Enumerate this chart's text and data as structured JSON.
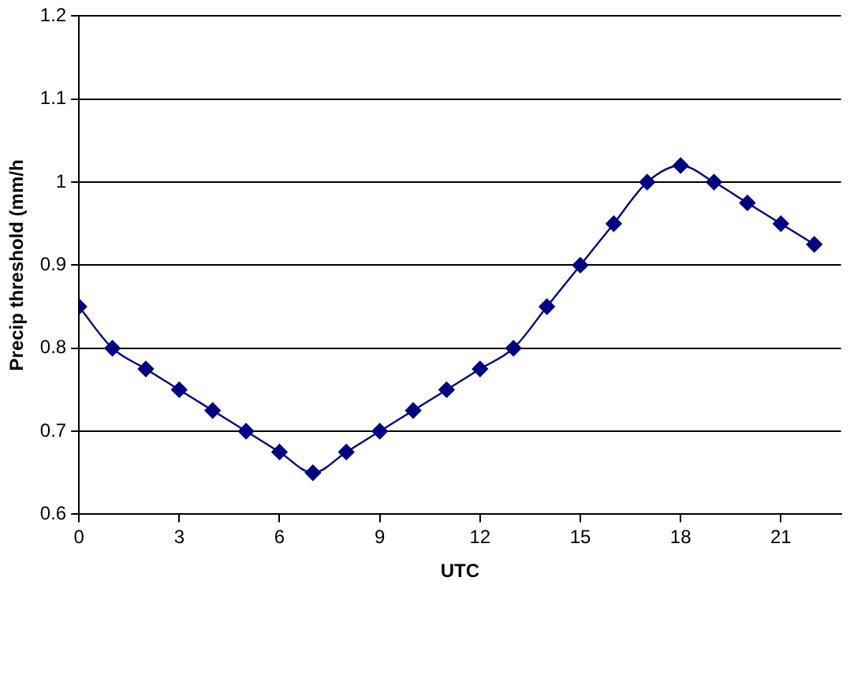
{
  "chart_data": {
    "type": "line",
    "xlabel": "UTC",
    "ylabel": "Precip threshold (mm/h",
    "x": [
      0,
      1,
      2,
      3,
      4,
      5,
      6,
      7,
      8,
      9,
      10,
      11,
      12,
      13,
      14,
      15,
      16,
      17,
      18,
      19,
      20,
      21,
      22
    ],
    "series": [
      {
        "color": "#000080",
        "values": [
          0.85,
          0.8,
          0.775,
          0.75,
          0.725,
          0.7,
          0.675,
          0.65,
          0.675,
          0.7,
          0.725,
          0.75,
          0.775,
          0.8,
          0.85,
          0.9,
          0.95,
          1.0,
          1.02,
          1.0,
          0.975,
          0.95,
          0.925
        ]
      }
    ],
    "xlim": [
      0,
      22.8
    ],
    "xticks": [
      0,
      3,
      6,
      9,
      12,
      15,
      18,
      21
    ],
    "ylim": [
      0.6,
      1.2
    ],
    "yticks": [
      {
        "value": 0.6,
        "label": "0.6"
      },
      {
        "value": 0.7,
        "label": "0.7"
      },
      {
        "value": 0.8,
        "label": "0.8"
      },
      {
        "value": 0.9,
        "label": "0.9"
      },
      {
        "value": 1,
        "label": "1"
      },
      {
        "value": 1.1,
        "label": "1.1"
      },
      {
        "value": 1.2,
        "label": "1.2"
      }
    ],
    "grid": "y",
    "legend": false,
    "marker": "diamond",
    "line_style": "solid"
  }
}
